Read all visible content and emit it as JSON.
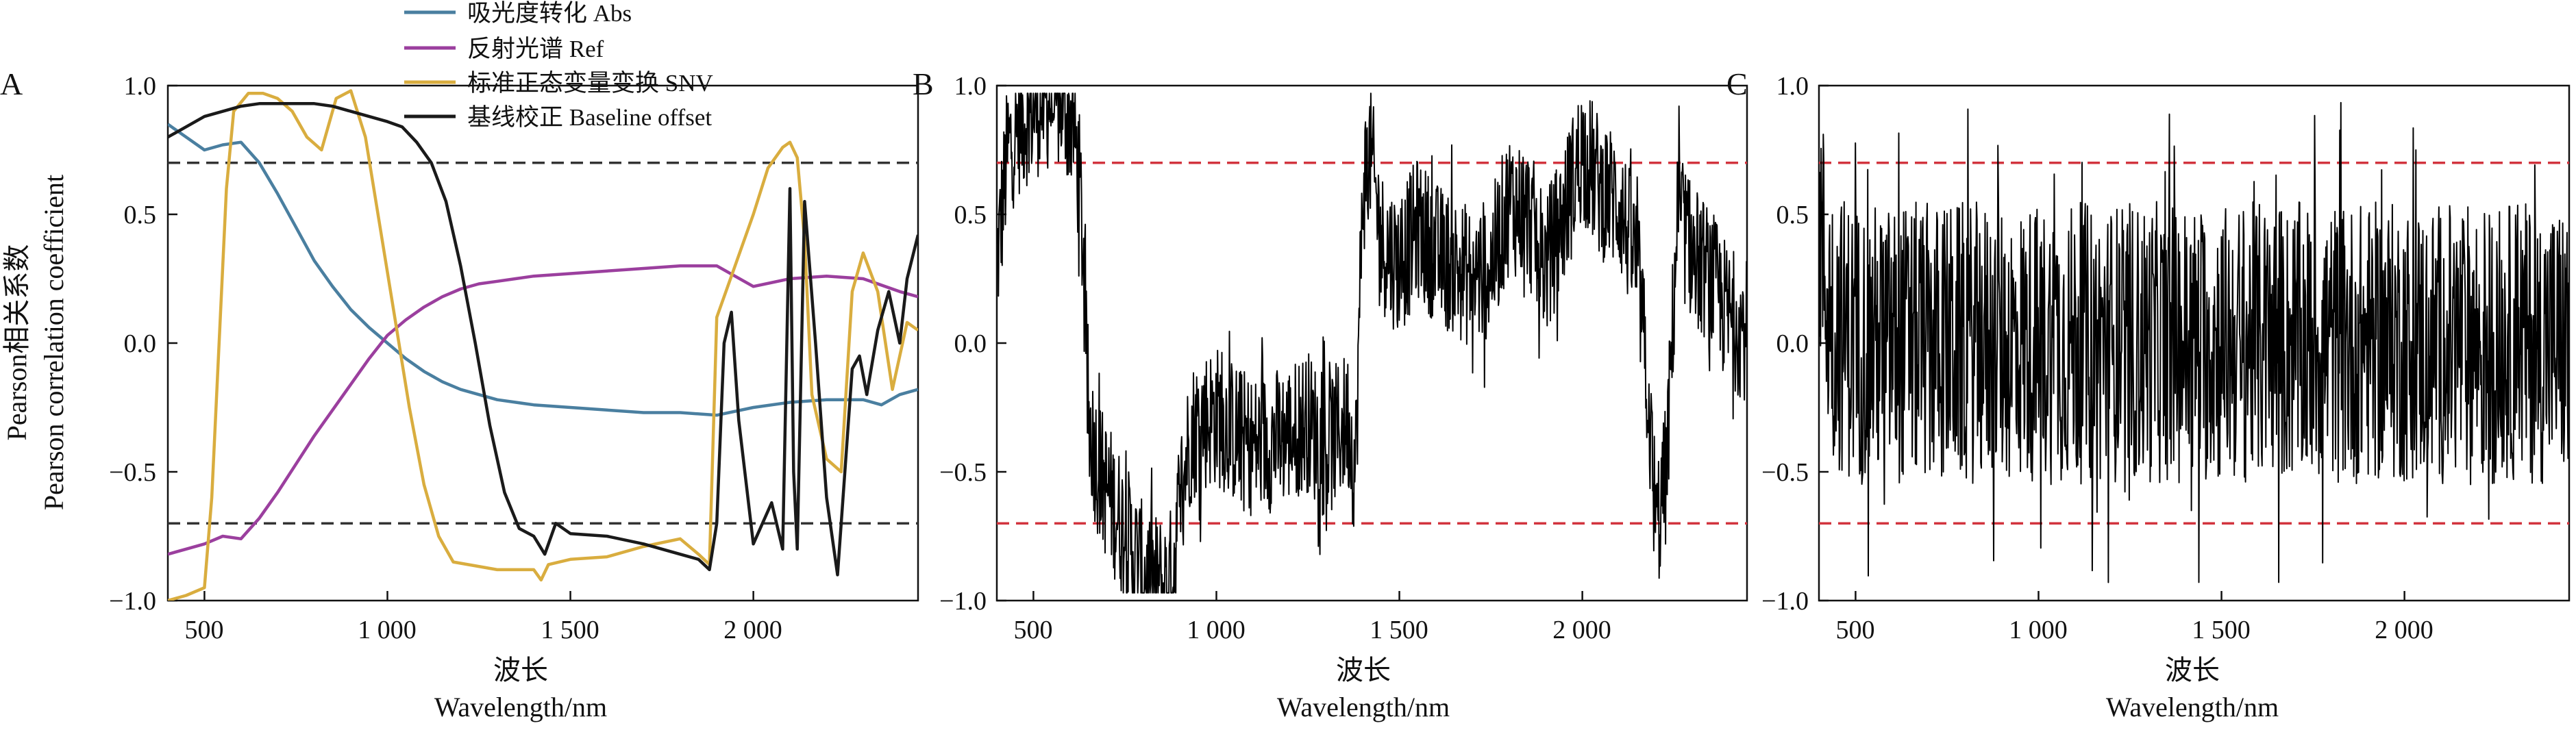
{
  "figure": {
    "y_label_cn": "Pearson相关系数",
    "y_label_en": "Pearson correlation coefficient"
  },
  "panels": [
    {
      "letter": "A",
      "xlabel_cn": "波长",
      "xlabel_en": "Wavelength/nm",
      "xticks": [
        "500",
        "1 000",
        "1 500",
        "2 000"
      ],
      "yticks": [
        "1.0",
        "0.5",
        "0.0",
        "−0.5",
        "−1.0"
      ],
      "legend": [
        "吸光度转化 Abs",
        "反射光谱 Ref",
        "标准正态变量变换 SNV",
        "基线校正 Baseline offset"
      ]
    },
    {
      "letter": "B",
      "xlabel_cn": "波长",
      "xlabel_en": "Wavelength/nm",
      "xticks": [
        "500",
        "1 000",
        "1 500",
        "2 000"
      ],
      "yticks": [
        "1.0",
        "0.5",
        "0.0",
        "−0.5",
        "−1.0"
      ]
    },
    {
      "letter": "C",
      "xlabel_cn": "波长",
      "xlabel_en": "Wavelength/nm",
      "xticks": [
        "500",
        "1 000",
        "1 500",
        "2 000"
      ],
      "yticks": [
        "1.0",
        "0.5",
        "0.0",
        "−0.5",
        "−1.0"
      ]
    }
  ],
  "chart_data": [
    {
      "type": "line",
      "panel": "A",
      "xlim": [
        400,
        2450
      ],
      "ylim": [
        -1.0,
        1.0
      ],
      "x_ticks": [
        500,
        1000,
        1500,
        2000
      ],
      "y_ticks": [
        1.0,
        0.5,
        0.0,
        -0.5,
        -1.0
      ],
      "legend_position": "top-center",
      "reference_lines": [
        {
          "y": 0.7,
          "style": "dashed",
          "color": "#333333"
        },
        {
          "y": -0.7,
          "style": "dashed",
          "color": "#333333"
        }
      ],
      "series": [
        {
          "name": "吸光度转化 Abs",
          "color": "#4a7fa0",
          "x": [
            400,
            450,
            500,
            550,
            600,
            650,
            700,
            750,
            800,
            850,
            900,
            950,
            1000,
            1050,
            1100,
            1150,
            1200,
            1250,
            1300,
            1400,
            1500,
            1600,
            1700,
            1800,
            1900,
            2000,
            2100,
            2200,
            2300,
            2350,
            2400,
            2450
          ],
          "y": [
            0.85,
            0.8,
            0.75,
            0.77,
            0.78,
            0.7,
            0.58,
            0.45,
            0.32,
            0.22,
            0.13,
            0.06,
            0.0,
            -0.06,
            -0.11,
            -0.15,
            -0.18,
            -0.2,
            -0.22,
            -0.24,
            -0.25,
            -0.26,
            -0.27,
            -0.27,
            -0.28,
            -0.25,
            -0.23,
            -0.22,
            -0.22,
            -0.24,
            -0.2,
            -0.18
          ]
        },
        {
          "name": "反射光谱 Ref",
          "color": "#9b3f9e",
          "x": [
            400,
            450,
            500,
            550,
            600,
            650,
            700,
            750,
            800,
            850,
            900,
            950,
            1000,
            1050,
            1100,
            1150,
            1200,
            1250,
            1300,
            1350,
            1400,
            1500,
            1600,
            1700,
            1800,
            1900,
            2000,
            2100,
            2200,
            2300,
            2400,
            2450
          ],
          "y": [
            -0.82,
            -0.8,
            -0.78,
            -0.75,
            -0.76,
            -0.68,
            -0.58,
            -0.47,
            -0.36,
            -0.26,
            -0.16,
            -0.06,
            0.03,
            0.09,
            0.14,
            0.18,
            0.21,
            0.23,
            0.24,
            0.25,
            0.26,
            0.27,
            0.28,
            0.29,
            0.3,
            0.3,
            0.22,
            0.25,
            0.26,
            0.25,
            0.2,
            0.18
          ]
        },
        {
          "name": "标准正态变量变换 SNV",
          "color": "#d9ad3f",
          "x": [
            400,
            450,
            500,
            520,
            540,
            560,
            580,
            620,
            660,
            700,
            740,
            780,
            820,
            860,
            900,
            940,
            980,
            1020,
            1060,
            1100,
            1140,
            1180,
            1220,
            1260,
            1300,
            1350,
            1400,
            1420,
            1440,
            1500,
            1600,
            1700,
            1800,
            1850,
            1880,
            1900,
            1950,
            2000,
            2040,
            2080,
            2100,
            2120,
            2140,
            2160,
            2200,
            2240,
            2270,
            2300,
            2340,
            2380,
            2420,
            2450
          ],
          "y": [
            -1.0,
            -0.98,
            -0.95,
            -0.6,
            0.0,
            0.6,
            0.9,
            0.97,
            0.97,
            0.95,
            0.9,
            0.8,
            0.75,
            0.95,
            0.98,
            0.8,
            0.45,
            0.1,
            -0.25,
            -0.55,
            -0.75,
            -0.85,
            -0.86,
            -0.87,
            -0.88,
            -0.88,
            -0.88,
            -0.92,
            -0.86,
            -0.84,
            -0.83,
            -0.79,
            -0.76,
            -0.82,
            -0.86,
            0.1,
            0.3,
            0.5,
            0.68,
            0.76,
            0.78,
            0.72,
            0.4,
            -0.2,
            -0.45,
            -0.5,
            0.2,
            0.35,
            0.2,
            -0.18,
            0.08,
            0.05
          ]
        },
        {
          "name": "基线校正 Baseline offset",
          "color": "#1a1a1a",
          "x": [
            400,
            450,
            500,
            550,
            600,
            650,
            700,
            750,
            800,
            850,
            900,
            950,
            1000,
            1040,
            1080,
            1120,
            1160,
            1200,
            1240,
            1280,
            1320,
            1360,
            1400,
            1430,
            1460,
            1500,
            1600,
            1700,
            1800,
            1850,
            1880,
            1900,
            1920,
            1940,
            1960,
            2000,
            2050,
            2080,
            2100,
            2110,
            2120,
            2140,
            2170,
            2200,
            2230,
            2250,
            2270,
            2290,
            2310,
            2340,
            2370,
            2400,
            2420,
            2450
          ],
          "y": [
            0.8,
            0.84,
            0.88,
            0.9,
            0.92,
            0.93,
            0.93,
            0.93,
            0.93,
            0.92,
            0.9,
            0.88,
            0.86,
            0.84,
            0.78,
            0.7,
            0.55,
            0.3,
            0.0,
            -0.32,
            -0.58,
            -0.72,
            -0.75,
            -0.82,
            -0.7,
            -0.74,
            -0.75,
            -0.78,
            -0.82,
            -0.84,
            -0.88,
            -0.7,
            0.0,
            0.12,
            -0.3,
            -0.78,
            -0.62,
            -0.8,
            0.6,
            -0.5,
            -0.8,
            0.55,
            0.0,
            -0.6,
            -0.9,
            -0.5,
            -0.1,
            -0.05,
            -0.2,
            0.05,
            0.2,
            0.0,
            0.25,
            0.42
          ]
        }
      ]
    },
    {
      "type": "line",
      "panel": "B",
      "xlim": [
        400,
        2450
      ],
      "ylim": [
        -1.0,
        1.0
      ],
      "x_ticks": [
        500,
        1000,
        1500,
        2000
      ],
      "y_ticks": [
        1.0,
        0.5,
        0.0,
        -0.5,
        -1.0
      ],
      "reference_lines": [
        {
          "y": 0.7,
          "style": "dashed",
          "color": "#d2343e"
        },
        {
          "y": -0.7,
          "style": "dashed",
          "color": "#d2343e"
        }
      ],
      "series": [
        {
          "color": "#000000",
          "noisy": true,
          "noise_amplitude": 0.28,
          "x": [
            400,
            430,
            460,
            490,
            520,
            550,
            580,
            610,
            630,
            650,
            680,
            710,
            740,
            770,
            800,
            830,
            860,
            880,
            900,
            930,
            960,
            1000,
            1050,
            1100,
            1150,
            1200,
            1250,
            1300,
            1330,
            1360,
            1380,
            1400,
            1420,
            1450,
            1500,
            1550,
            1600,
            1650,
            1700,
            1750,
            1800,
            1850,
            1900,
            1950,
            2000,
            2050,
            2100,
            2150,
            2180,
            2200,
            2230,
            2260,
            2300,
            2350,
            2400,
            2450
          ],
          "y": [
            0.3,
            0.75,
            0.85,
            0.9,
            0.93,
            0.95,
            0.93,
            0.85,
            0.55,
            -0.3,
            -0.5,
            -0.6,
            -0.7,
            -0.8,
            -0.9,
            -0.93,
            -0.95,
            -0.9,
            -0.6,
            -0.35,
            -0.3,
            -0.28,
            -0.35,
            -0.4,
            -0.38,
            -0.35,
            -0.3,
            -0.42,
            -0.35,
            -0.3,
            -0.5,
            0.6,
            0.75,
            0.4,
            0.3,
            0.45,
            0.35,
            0.3,
            0.25,
            0.3,
            0.55,
            0.5,
            0.3,
            0.5,
            0.75,
            0.6,
            0.55,
            0.3,
            -0.2,
            -0.75,
            -0.5,
            0.5,
            0.35,
            0.25,
            0.1,
            0.05
          ]
        }
      ]
    },
    {
      "type": "line",
      "panel": "C",
      "xlim": [
        400,
        2450
      ],
      "ylim": [
        -1.0,
        1.0
      ],
      "x_ticks": [
        500,
        1000,
        1500,
        2000
      ],
      "y_ticks": [
        1.0,
        0.5,
        0.0,
        -0.5,
        -1.0
      ],
      "reference_lines": [
        {
          "y": 0.7,
          "style": "dashed",
          "color": "#d2343e"
        },
        {
          "y": -0.7,
          "style": "dashed",
          "color": "#d2343e"
        }
      ],
      "series": [
        {
          "color": "#000000",
          "noisy": true,
          "noise_amplitude": 0.55,
          "x": [
            400,
            420,
            450,
            500,
            1000,
            1500,
            2000,
            2450
          ],
          "y": [
            0.5,
            0.2,
            0.05,
            0.0,
            0.0,
            0.0,
            0.0,
            0.0
          ]
        }
      ]
    }
  ]
}
